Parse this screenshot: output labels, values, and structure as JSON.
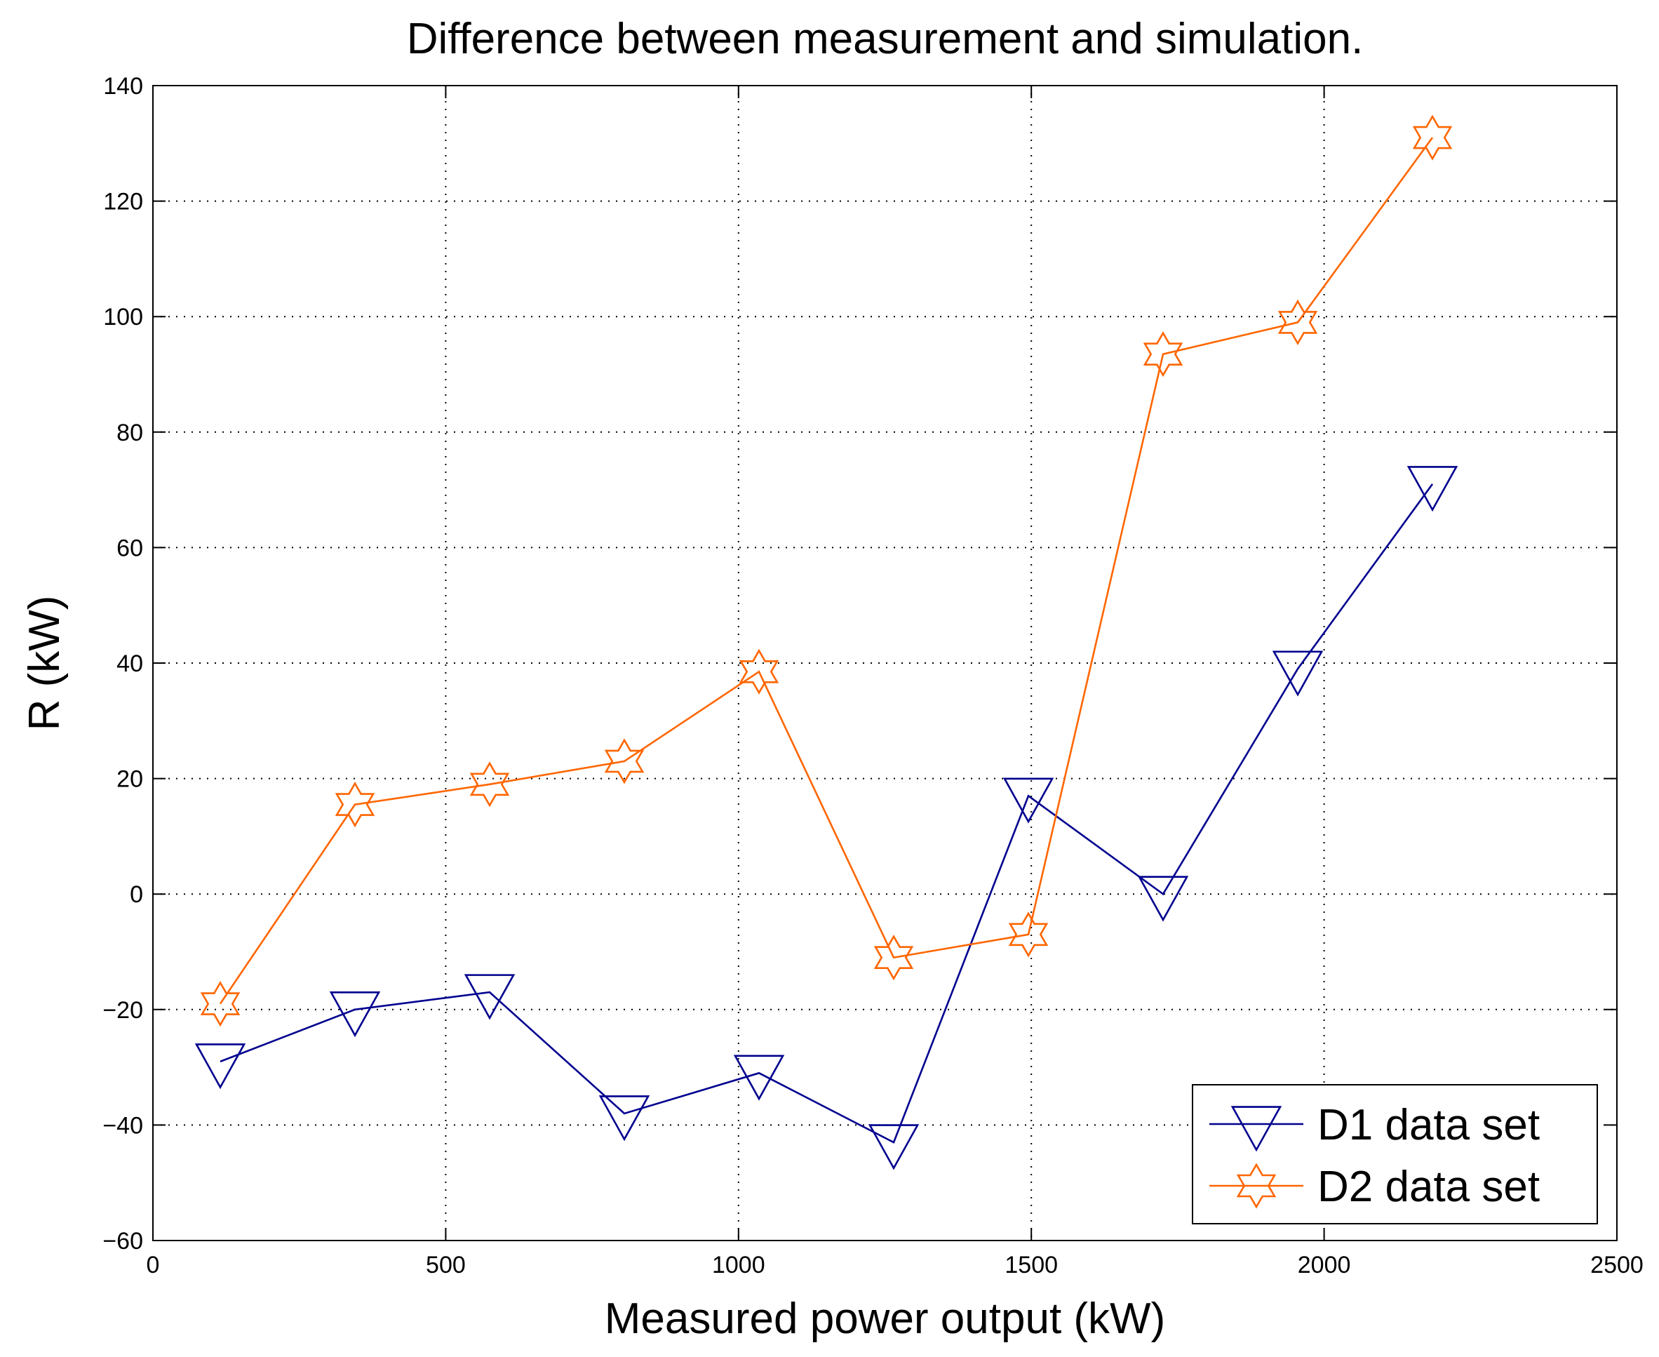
{
  "chart_data": {
    "type": "line",
    "title": "Difference between measurement and simulation.",
    "xlabel": "Measured power output (kW)",
    "ylabel": "R (kW)",
    "xlim": [
      0,
      2500
    ],
    "ylim": [
      -60,
      140
    ],
    "xticks": [
      0,
      500,
      1000,
      1500,
      2000,
      2500
    ],
    "yticks": [
      -60,
      -40,
      -20,
      0,
      20,
      40,
      60,
      80,
      100,
      120,
      140
    ],
    "xtick_labels": [
      "0",
      "500",
      "1000",
      "1500",
      "2000",
      "2500"
    ],
    "ytick_labels": [
      "−60",
      "−40",
      "−20",
      "0",
      "20",
      "40",
      "60",
      "80",
      "100",
      "120",
      "140"
    ],
    "grid": true,
    "legend_position": "bottom-right",
    "series": [
      {
        "name": "D1 data set",
        "color": "#00008f",
        "marker": "triangle-down",
        "x": [
          115,
          345,
          575,
          805,
          1035,
          1265,
          1495,
          1725,
          1955,
          2185
        ],
        "y": [
          -29,
          -20,
          -17,
          -38,
          -31,
          -43,
          17,
          0,
          39,
          71
        ]
      },
      {
        "name": "D2 data set",
        "color": "#ff6600",
        "marker": "hexagram",
        "x": [
          115,
          345,
          575,
          805,
          1035,
          1265,
          1495,
          1725,
          1955,
          2185
        ],
        "y": [
          -19,
          15.5,
          19,
          23,
          38.5,
          -11,
          -7,
          93.5,
          99,
          131
        ]
      }
    ]
  }
}
